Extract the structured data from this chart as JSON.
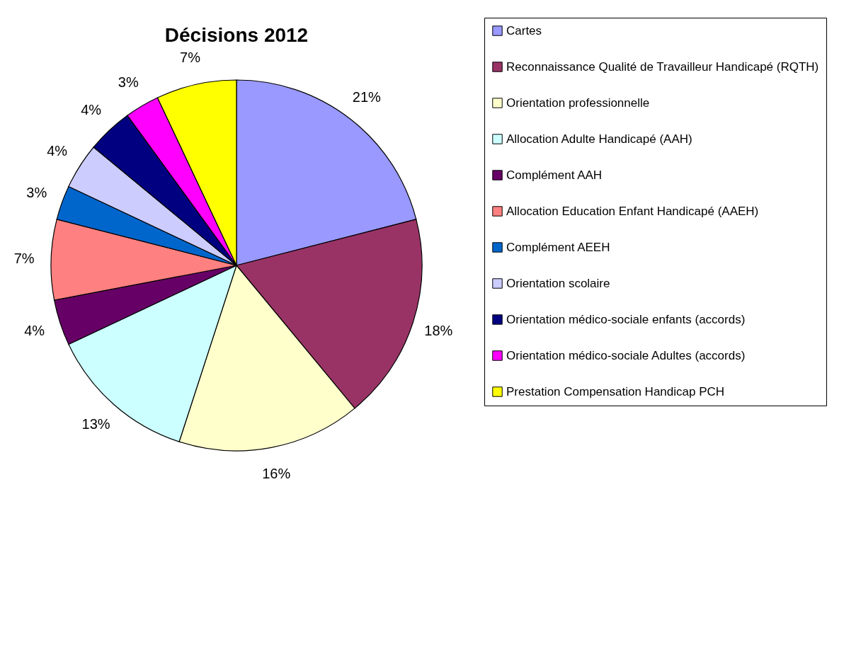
{
  "chart_data": {
    "type": "pie",
    "title": "Décisions 2012",
    "categories": [
      "Cartes",
      "Reconnaissance Qualité de Travailleur Handicapé (RQTH)",
      "Orientation professionnelle",
      "Allocation Adulte Handicapé (AAH)",
      "Complément AAH",
      "Allocation Education Enfant Handicapé (AAEH)",
      "Complément AEEH",
      "Orientation scolaire",
      "Orientation médico-sociale enfants (accords)",
      "Orientation médico-sociale Adultes (accords)",
      "Prestation Compensation Handicap PCH"
    ],
    "values": [
      21,
      18,
      16,
      13,
      4,
      7,
      3,
      4,
      4,
      3,
      7
    ],
    "value_labels": [
      "21%",
      "18%",
      "16%",
      "13%",
      "4%",
      "7%",
      "3%",
      "4%",
      "4%",
      "3%",
      "7%"
    ],
    "colors": [
      "#9999ff",
      "#993366",
      "#ffffcc",
      "#ccffff",
      "#660066",
      "#ff8080",
      "#0066cc",
      "#ccccff",
      "#000080",
      "#ff00ff",
      "#ffff00"
    ],
    "legend": "right"
  }
}
